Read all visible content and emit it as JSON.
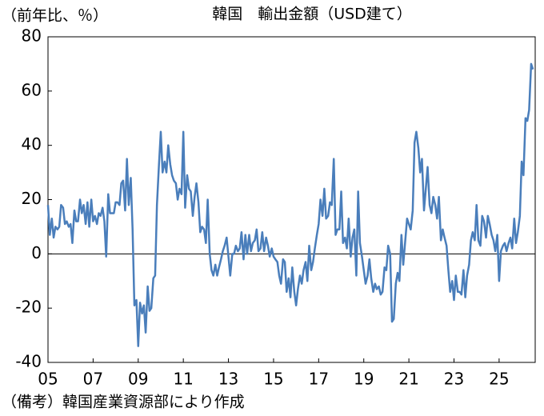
{
  "chart_data": {
    "type": "line",
    "title": "韓国　輸出金額（USD建て）",
    "y_label": "（前年比、％）",
    "note": "（備考）韓国産業資源部により作成",
    "x": [
      2005,
      2005.08,
      2005.17,
      2005.25,
      2005.33,
      2005.42,
      2005.5,
      2005.58,
      2005.67,
      2005.75,
      2005.83,
      2005.92,
      2006,
      2006.08,
      2006.17,
      2006.25,
      2006.33,
      2006.42,
      2006.5,
      2006.58,
      2006.67,
      2006.75,
      2006.83,
      2006.92,
      2007,
      2007.08,
      2007.17,
      2007.25,
      2007.33,
      2007.42,
      2007.5,
      2007.58,
      2007.67,
      2007.75,
      2007.83,
      2007.92,
      2008,
      2008.08,
      2008.17,
      2008.25,
      2008.33,
      2008.42,
      2008.5,
      2008.58,
      2008.67,
      2008.75,
      2008.83,
      2008.92,
      2009,
      2009.08,
      2009.17,
      2009.25,
      2009.33,
      2009.42,
      2009.5,
      2009.58,
      2009.67,
      2009.75,
      2009.83,
      2009.92,
      2010,
      2010.08,
      2010.17,
      2010.25,
      2010.33,
      2010.42,
      2010.5,
      2010.58,
      2010.67,
      2010.75,
      2010.83,
      2010.92,
      2011,
      2011.08,
      2011.17,
      2011.25,
      2011.33,
      2011.42,
      2011.5,
      2011.58,
      2011.67,
      2011.75,
      2011.83,
      2011.92,
      2012,
      2012.08,
      2012.17,
      2012.25,
      2012.33,
      2012.42,
      2012.5,
      2012.58,
      2012.67,
      2012.75,
      2012.83,
      2012.92,
      2013,
      2013.08,
      2013.17,
      2013.25,
      2013.33,
      2013.42,
      2013.5,
      2013.58,
      2013.67,
      2013.75,
      2013.83,
      2013.92,
      2014,
      2014.08,
      2014.17,
      2014.25,
      2014.33,
      2014.42,
      2014.5,
      2014.58,
      2014.67,
      2014.75,
      2014.83,
      2014.92,
      2015,
      2015.08,
      2015.17,
      2015.25,
      2015.33,
      2015.42,
      2015.5,
      2015.58,
      2015.67,
      2015.75,
      2015.83,
      2015.92,
      2016,
      2016.08,
      2016.17,
      2016.25,
      2016.33,
      2016.42,
      2016.5,
      2016.58,
      2016.67,
      2016.75,
      2016.83,
      2016.92,
      2017,
      2017.08,
      2017.17,
      2017.25,
      2017.33,
      2017.42,
      2017.5,
      2017.58,
      2017.67,
      2017.75,
      2017.83,
      2017.92,
      2018,
      2018.08,
      2018.17,
      2018.25,
      2018.33,
      2018.42,
      2018.5,
      2018.58,
      2018.67,
      2018.75,
      2018.83,
      2018.92,
      2019,
      2019.08,
      2019.17,
      2019.25,
      2019.33,
      2019.42,
      2019.5,
      2019.58,
      2019.67,
      2019.75,
      2019.83,
      2019.92,
      2020,
      2020.08,
      2020.17,
      2020.25,
      2020.33,
      2020.42,
      2020.5,
      2020.58,
      2020.67,
      2020.75,
      2020.83,
      2020.92,
      2021,
      2021.08,
      2021.17,
      2021.25,
      2021.33,
      2021.42,
      2021.5,
      2021.58,
      2021.67,
      2021.75,
      2021.83,
      2021.92,
      2022,
      2022.08,
      2022.17,
      2022.25,
      2022.33,
      2022.42,
      2022.5,
      2022.58,
      2022.67,
      2022.75,
      2022.83,
      2022.92,
      2023,
      2023.08,
      2023.17,
      2023.25,
      2023.33,
      2023.42,
      2023.5,
      2023.58,
      2023.67,
      2023.75,
      2023.83,
      2023.92,
      2024,
      2024.08,
      2024.17,
      2024.25,
      2024.33,
      2024.42,
      2024.5,
      2024.58,
      2024.67,
      2024.75,
      2024.83,
      2024.92,
      2025,
      2025.08,
      2025.17,
      2025.25,
      2025.33,
      2025.42,
      2025.5,
      2025.58,
      2025.67,
      2025.75,
      2025.83,
      2025.92,
      2026,
      2026.08,
      2026.17,
      2026.25,
      2026.33,
      2026.42,
      2026.5
    ],
    "values": [
      18,
      7,
      13,
      6,
      10,
      9,
      10,
      18,
      17,
      11,
      12,
      10,
      11,
      4,
      16,
      12,
      12,
      20,
      15,
      18,
      11,
      19,
      10,
      20,
      12,
      14,
      11,
      15,
      14,
      17,
      12,
      -1,
      22,
      15,
      15,
      15,
      19,
      19,
      18,
      26,
      27,
      16,
      35,
      18,
      28,
      9,
      -19,
      -17,
      -34,
      -18,
      -22,
      -19,
      -29,
      -12,
      -21,
      -20,
      -9,
      -8,
      18,
      33,
      45,
      30,
      34,
      30,
      40,
      33,
      29,
      27,
      26,
      20,
      24,
      22,
      45,
      17,
      29,
      24,
      23,
      14,
      21,
      26,
      19,
      8,
      10,
      9,
      4,
      20,
      0,
      -6,
      -8,
      -4,
      -8,
      -5,
      -2,
      1,
      3,
      6,
      -1,
      -8,
      0,
      0,
      3,
      1,
      2,
      8,
      -2,
      7,
      0,
      7,
      1,
      4,
      5,
      9,
      1,
      2,
      8,
      1,
      6,
      3,
      -1,
      2,
      -1,
      -2,
      -3,
      -8,
      -11,
      -2,
      -3,
      -14,
      -9,
      -16,
      -5,
      -14,
      -19,
      -13,
      -8,
      -11,
      -6,
      -3,
      -10,
      3,
      -6,
      -3,
      2,
      7,
      11,
      20,
      14,
      24,
      13,
      14,
      19,
      18,
      35,
      7,
      9,
      9,
      23,
      4,
      6,
      2,
      13,
      -1,
      6,
      9,
      -8,
      23,
      4,
      -1,
      -6,
      -11,
      -8,
      -2,
      -9,
      -14,
      -11,
      -13,
      -12,
      -15,
      -14,
      -5,
      -6,
      3,
      0,
      -25,
      -24,
      -11,
      -7,
      -10,
      7,
      -4,
      4,
      13,
      11,
      9,
      16,
      41,
      45,
      39,
      30,
      35,
      16,
      24,
      32,
      18,
      15,
      21,
      18,
      13,
      21,
      5,
      9,
      6,
      3,
      -6,
      -14,
      -10,
      -17,
      -8,
      -14,
      -14,
      -15,
      -6,
      -16,
      -8,
      -4,
      5,
      8,
      5,
      18,
      5,
      3,
      14,
      12,
      6,
      14,
      11,
      7,
      5,
      1,
      7,
      -10,
      1,
      3,
      4,
      1,
      4,
      6,
      2,
      13,
      4,
      8,
      14,
      34,
      29,
      50,
      49,
      53,
      70,
      68
    ],
    "color": "#4a7ebb",
    "xlim": [
      2005,
      2026.6
    ],
    "xticks": [
      {
        "value": 2005,
        "label": "05"
      },
      {
        "value": 2007,
        "label": "07"
      },
      {
        "value": 2009,
        "label": "09"
      },
      {
        "value": 2011,
        "label": "11"
      },
      {
        "value": 2013,
        "label": "13"
      },
      {
        "value": 2015,
        "label": "15"
      },
      {
        "value": 2017,
        "label": "17"
      },
      {
        "value": 2019,
        "label": "19"
      },
      {
        "value": 2021,
        "label": "21"
      },
      {
        "value": 2023,
        "label": "23"
      },
      {
        "value": 2025,
        "label": "25"
      }
    ],
    "ylim": [
      -40,
      80
    ],
    "yticks": [
      -40,
      -20,
      0,
      20,
      40,
      60,
      80
    ],
    "grid": false
  }
}
